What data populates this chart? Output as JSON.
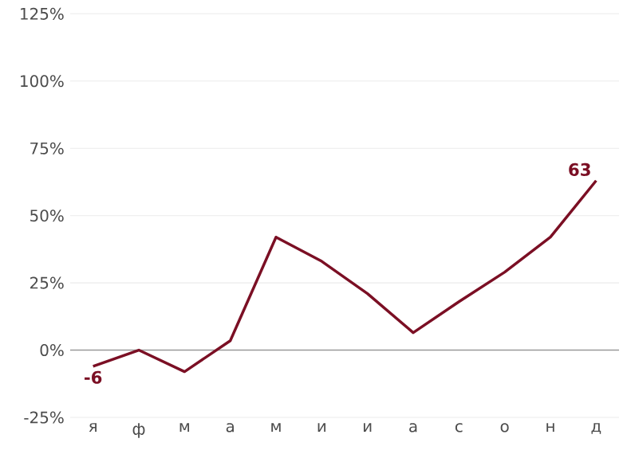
{
  "chart_data": {
    "type": "line",
    "categories": [
      "я",
      "ф",
      "м",
      "а",
      "м",
      "и",
      "и",
      "а",
      "с",
      "о",
      "н",
      "д"
    ],
    "values": [
      -6,
      0,
      -8,
      3.5,
      42,
      33,
      21,
      6.5,
      18,
      29,
      42,
      63
    ],
    "value_labels": [
      "-6",
      null,
      null,
      null,
      null,
      null,
      null,
      null,
      null,
      null,
      null,
      "63"
    ],
    "color": "#7b0f24",
    "ylim": [
      -25,
      125
    ],
    "yticks": [
      {
        "value": -25,
        "label": "-25%"
      },
      {
        "value": 0,
        "label": "0%"
      },
      {
        "value": 25,
        "label": "25%"
      },
      {
        "value": 50,
        "label": "50%"
      },
      {
        "value": 75,
        "label": "75%"
      },
      {
        "value": 100,
        "label": "100%"
      },
      {
        "value": 125,
        "label": "125%"
      }
    ],
    "grid": "y",
    "marker": "none",
    "line_style": "solid",
    "ref_lines": [
      {
        "axis": "y",
        "value": 0,
        "color": "#999999"
      }
    ]
  }
}
